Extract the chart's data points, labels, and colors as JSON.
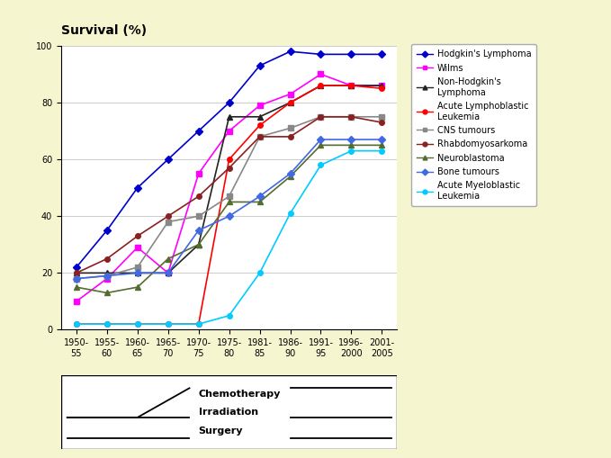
{
  "background_color": "#f5f5d0",
  "plot_bg": "#ffffff",
  "title": "Survival (%)",
  "x_labels": [
    "1950-\n55",
    "1955-\n60",
    "1960-\n65",
    "1965-\n70",
    "1970-\n75",
    "1975-\n80",
    "1981-\n85",
    "1986-\n90",
    "1991-\n95",
    "1996-\n2000",
    "2001-\n2005"
  ],
  "x_positions": [
    0,
    1,
    2,
    3,
    4,
    5,
    6,
    7,
    8,
    9,
    10
  ],
  "series": [
    {
      "name": "Hodgkin's Lymphoma",
      "color": "#0000CC",
      "marker": "D",
      "markersize": 4,
      "values": [
        22,
        35,
        50,
        60,
        70,
        80,
        93,
        98,
        97,
        97,
        97
      ]
    },
    {
      "name": "Wilms",
      "color": "#FF00FF",
      "marker": "s",
      "markersize": 4,
      "values": [
        10,
        18,
        29,
        20,
        55,
        70,
        79,
        83,
        90,
        86,
        86
      ]
    },
    {
      "name": "Non-Hodgkin's\nLymphoma",
      "color": "#222222",
      "marker": "^",
      "markersize": 4,
      "values": [
        20,
        20,
        20,
        20,
        30,
        75,
        75,
        80,
        86,
        86,
        86
      ]
    },
    {
      "name": "Acute Lymphoblastic\nLeukemia",
      "color": "#FF0000",
      "marker": "o",
      "markersize": 4,
      "values": [
        2,
        2,
        2,
        2,
        2,
        60,
        72,
        80,
        86,
        86,
        85
      ]
    },
    {
      "name": "CNS tumours",
      "color": "#888888",
      "marker": "s",
      "markersize": 4,
      "values": [
        18,
        19,
        22,
        38,
        40,
        47,
        68,
        71,
        75,
        75,
        75
      ]
    },
    {
      "name": "Rhabdomyosarkoma",
      "color": "#8B2020",
      "marker": "o",
      "markersize": 4,
      "values": [
        20,
        25,
        33,
        40,
        47,
        57,
        68,
        68,
        75,
        75,
        73
      ]
    },
    {
      "name": "Neuroblastoma",
      "color": "#556B2F",
      "marker": "^",
      "markersize": 4,
      "values": [
        15,
        13,
        15,
        25,
        30,
        45,
        45,
        54,
        65,
        65,
        65
      ]
    },
    {
      "name": "Bone tumours",
      "color": "#4169E1",
      "marker": "D",
      "markersize": 4,
      "values": [
        18,
        19,
        20,
        20,
        35,
        40,
        47,
        55,
        67,
        67,
        67
      ]
    },
    {
      "name": "Acute Myeloblastic\nLeukemia",
      "color": "#00CCFF",
      "marker": "o",
      "markersize": 4,
      "values": [
        2,
        2,
        2,
        2,
        2,
        5,
        20,
        41,
        58,
        63,
        63
      ]
    }
  ],
  "ylim": [
    0,
    100
  ],
  "yticks": [
    0,
    20,
    40,
    60,
    80,
    100
  ],
  "tick_fontsize": 7,
  "legend_fontsize": 7,
  "title_fontsize": 10
}
